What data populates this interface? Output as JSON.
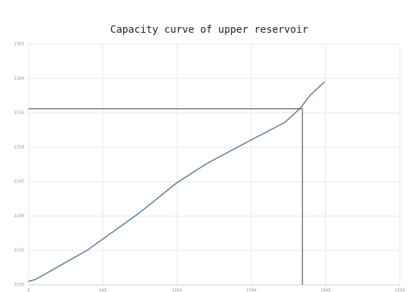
{
  "chart_data": {
    "type": "line",
    "title": "Capacity curve of upper reservoir",
    "x": [
      0,
      48,
      393,
      742,
      996,
      1197,
      1509,
      1724,
      1830,
      1897,
      1992
    ],
    "series": [
      {
        "color": "#5b7fa0",
        "values": [
          1330.5,
          1330.8,
          1335.0,
          1340.4,
          1344.8,
          1347.6,
          1351.2,
          1353.6,
          1355.7,
          1357.6,
          1359.5
        ]
      }
    ],
    "reference": {
      "x": 1844,
      "y": 1355.6,
      "color": "#555555"
    },
    "xlim": [
      0,
      2500
    ],
    "xticks": [
      0,
      500,
      1000,
      1500,
      2000,
      2500
    ],
    "ylim": [
      1330,
      1365
    ],
    "yticks": [
      1330,
      1335,
      1340,
      1345,
      1350,
      1355,
      1360,
      1365
    ],
    "grid": true
  }
}
